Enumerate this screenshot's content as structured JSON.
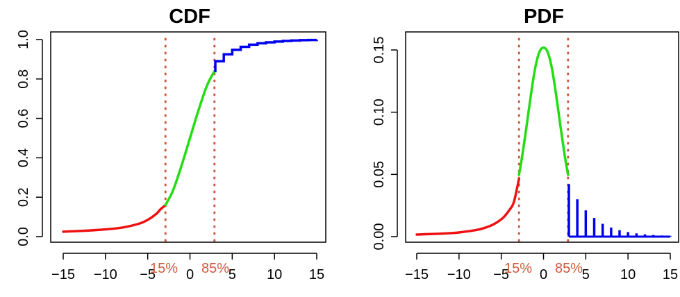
{
  "colors": {
    "tail": "#ee1111",
    "body": "#22dd11",
    "discrete": "#0000ee",
    "quantile": "#cd5a3c",
    "axis": "#000000"
  },
  "quantile_lines": [
    {
      "x": -2.9,
      "label": "15%"
    },
    {
      "x": 2.9,
      "label": "85%"
    }
  ],
  "chart_data": [
    {
      "type": "line",
      "title": "CDF",
      "xlabel": "",
      "ylabel": "",
      "xlim": [
        -15,
        15
      ],
      "ylim": [
        0,
        1
      ],
      "xticks": [
        -15,
        -10,
        -5,
        0,
        5,
        10,
        15
      ],
      "xtick_labels": [
        "−15",
        "−10",
        "−5",
        "0",
        "5",
        "10",
        "15"
      ],
      "yticks": [
        0,
        0.2,
        0.4,
        0.6,
        0.8,
        1.0
      ],
      "ytick_labels": [
        "0.0",
        "0.2",
        "0.4",
        "0.6",
        "0.8",
        "1.0"
      ],
      "grid": false,
      "series": [
        {
          "color": "red",
          "x": [
            -15,
            -12,
            -10,
            -8,
            -6,
            -5,
            -4,
            -3.5,
            -2.9
          ],
          "values": [
            0.025,
            0.031,
            0.037,
            0.046,
            0.066,
            0.085,
            0.115,
            0.138,
            0.16
          ]
        },
        {
          "color": "green",
          "x": [
            -2.9,
            -2,
            -1,
            0,
            1,
            2,
            2.9
          ],
          "values": [
            0.16,
            0.235,
            0.36,
            0.5,
            0.64,
            0.765,
            0.84
          ]
        },
        {
          "color": "blue",
          "step": true,
          "x": [
            2.9,
            3,
            4,
            5,
            6,
            7,
            8,
            9,
            10,
            11,
            12,
            13,
            14,
            15
          ],
          "values": [
            0.84,
            0.89,
            0.925,
            0.948,
            0.963,
            0.974,
            0.981,
            0.986,
            0.99,
            0.993,
            0.995,
            0.997,
            0.998,
            0.999
          ]
        }
      ]
    },
    {
      "type": "line",
      "title": "PDF",
      "xlabel": "",
      "ylabel": "",
      "xlim": [
        -15,
        15
      ],
      "ylim": [
        0,
        0.16
      ],
      "xticks": [
        -15,
        -10,
        -5,
        0,
        5,
        10,
        15
      ],
      "xtick_labels": [
        "−15",
        "−10",
        "−5",
        "0",
        "5",
        "10",
        "15"
      ],
      "yticks": [
        0,
        0.05,
        0.1,
        0.15
      ],
      "ytick_labels": [
        "0.00",
        "0.05",
        "0.10",
        "0.15"
      ],
      "grid": false,
      "series": [
        {
          "color": "red",
          "x": [
            -15,
            -12,
            -10,
            -8,
            -7,
            -6,
            -5,
            -4.5,
            -4,
            -3.5,
            -2.9
          ],
          "values": [
            0.0018,
            0.0026,
            0.0036,
            0.0056,
            0.0074,
            0.0102,
            0.0148,
            0.0184,
            0.0232,
            0.0298,
            0.0495
          ]
        },
        {
          "color": "green",
          "x": [
            -2.9,
            -2.5,
            -2,
            -1.5,
            -1,
            -0.5,
            0,
            0.5,
            1,
            1.5,
            2,
            2.5,
            2.9
          ],
          "values": [
            0.053,
            0.07,
            0.095,
            0.121,
            0.144,
            0.158,
            0.162,
            0.158,
            0.144,
            0.121,
            0.095,
            0.07,
            0.053
          ]
        },
        {
          "color": "blue",
          "type": "stem",
          "x": [
            3,
            4,
            5,
            6,
            7,
            8,
            9,
            10,
            11,
            12,
            13,
            14,
            15
          ],
          "values": [
            0.045,
            0.032,
            0.0225,
            0.016,
            0.011,
            0.0078,
            0.0055,
            0.0039,
            0.0028,
            0.002,
            0.0014,
            0.001,
            0.0007
          ]
        }
      ]
    }
  ]
}
